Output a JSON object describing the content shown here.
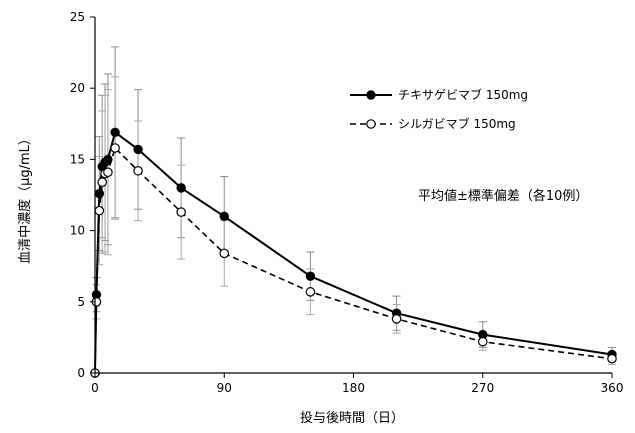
{
  "chart_data": {
    "type": "line",
    "title": "",
    "xlabel": "投与後時間（日）",
    "ylabel": "血清中濃度（μg/mL）",
    "xlim": [
      0,
      360
    ],
    "ylim": [
      0,
      25
    ],
    "xticks": [
      0,
      90,
      180,
      270,
      360
    ],
    "yticks": [
      0,
      5,
      10,
      15,
      20,
      25
    ],
    "grid": false,
    "legend_position": "top-right",
    "annotation": "平均値±標準偏差（各10例）",
    "series": [
      {
        "name": "チキサゲビマブ 150mg",
        "marker": "filled-circle",
        "line_style": "solid",
        "color": "#000000",
        "x": [
          0,
          1,
          3,
          5,
          7,
          9,
          14,
          30,
          60,
          90,
          150,
          210,
          270,
          360
        ],
        "y": [
          0,
          5.5,
          12.6,
          14.5,
          14.8,
          15.0,
          16.9,
          15.7,
          13.0,
          11.0,
          6.8,
          4.2,
          2.7,
          1.3
        ],
        "err": [
          0,
          1.2,
          4.0,
          5.0,
          5.5,
          6.0,
          6.0,
          4.2,
          3.5,
          2.8,
          1.7,
          1.2,
          0.9,
          0.5
        ]
      },
      {
        "name": "シルガビマブ 150mg",
        "marker": "open-circle",
        "line_style": "dashed",
        "color": "#000000",
        "x": [
          0,
          1,
          3,
          5,
          7,
          9,
          14,
          30,
          60,
          90,
          150,
          210,
          270,
          360
        ],
        "y": [
          0,
          5.0,
          11.4,
          13.4,
          14.0,
          14.1,
          15.8,
          14.2,
          11.3,
          8.4,
          5.7,
          3.8,
          2.2,
          1.0
        ],
        "err": [
          0,
          1.2,
          3.8,
          5.0,
          5.5,
          5.8,
          5.0,
          3.5,
          3.3,
          2.3,
          1.6,
          1.0,
          0.6,
          0.4
        ]
      }
    ]
  }
}
